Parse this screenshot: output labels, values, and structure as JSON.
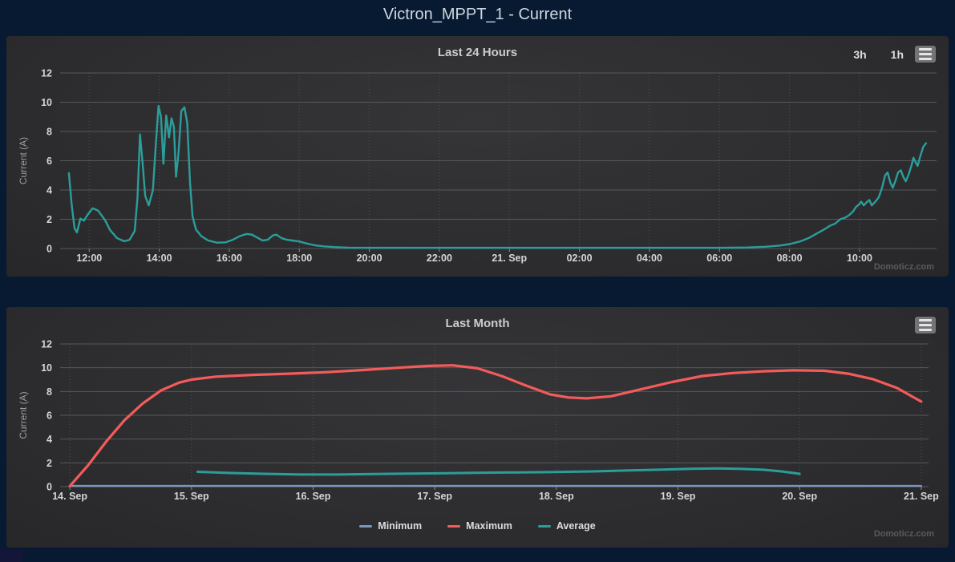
{
  "page": {
    "title": "Victron_MPPT_1 - Current",
    "watermark": "Domoticz.com"
  },
  "colors": {
    "background": "#081a31",
    "panel": "#2b2b2d",
    "grid_line": "#56585a",
    "grid_dotted": "#505153",
    "tick_mark": "#8a8a8a",
    "teal": "#2b9e9a",
    "red": "#f45b5b",
    "blue": "#7798bf",
    "text": "#d6d6d6"
  },
  "chart_data": [
    {
      "type": "line",
      "title": "Last 24 Hours",
      "range_buttons": [
        "3h",
        "1h"
      ],
      "ylabel": "Current (A)",
      "ylim": [
        0,
        12
      ],
      "yticks": [
        0,
        2,
        4,
        6,
        8,
        10,
        12
      ],
      "xlim": [
        11.17,
        36.2
      ],
      "xticks": [
        {
          "t": 12,
          "label": "12:00"
        },
        {
          "t": 14,
          "label": "14:00"
        },
        {
          "t": 16,
          "label": "16:00"
        },
        {
          "t": 18,
          "label": "18:00"
        },
        {
          "t": 20,
          "label": "20:00"
        },
        {
          "t": 22,
          "label": "22:00"
        },
        {
          "t": 24,
          "label": "21. Sep"
        },
        {
          "t": 26,
          "label": "02:00"
        },
        {
          "t": 28,
          "label": "04:00"
        },
        {
          "t": 30,
          "label": "06:00"
        },
        {
          "t": 32,
          "label": "08:00"
        },
        {
          "t": 34,
          "label": "10:00"
        }
      ],
      "grid": true,
      "legend": false,
      "series": [
        {
          "name": "Current",
          "color": "#2b9e9a",
          "width": 2.4,
          "points": [
            [
              11.42,
              5.15
            ],
            [
              11.5,
              3.0
            ],
            [
              11.58,
              1.4
            ],
            [
              11.65,
              1.1
            ],
            [
              11.75,
              2.05
            ],
            [
              11.85,
              1.9
            ],
            [
              11.95,
              2.3
            ],
            [
              12.1,
              2.75
            ],
            [
              12.25,
              2.6
            ],
            [
              12.45,
              1.95
            ],
            [
              12.6,
              1.25
            ],
            [
              12.8,
              0.7
            ],
            [
              13.0,
              0.5
            ],
            [
              13.15,
              0.6
            ],
            [
              13.3,
              1.2
            ],
            [
              13.38,
              3.5
            ],
            [
              13.45,
              7.8
            ],
            [
              13.52,
              6.0
            ],
            [
              13.6,
              3.6
            ],
            [
              13.7,
              2.95
            ],
            [
              13.82,
              4.0
            ],
            [
              13.9,
              7.0
            ],
            [
              13.98,
              9.75
            ],
            [
              14.05,
              9.0
            ],
            [
              14.12,
              5.8
            ],
            [
              14.2,
              9.1
            ],
            [
              14.28,
              7.6
            ],
            [
              14.35,
              8.9
            ],
            [
              14.42,
              8.3
            ],
            [
              14.48,
              4.9
            ],
            [
              14.55,
              6.5
            ],
            [
              14.63,
              9.4
            ],
            [
              14.72,
              9.65
            ],
            [
              14.8,
              8.6
            ],
            [
              14.88,
              4.5
            ],
            [
              14.95,
              2.2
            ],
            [
              15.05,
              1.3
            ],
            [
              15.2,
              0.85
            ],
            [
              15.4,
              0.55
            ],
            [
              15.65,
              0.4
            ],
            [
              15.9,
              0.42
            ],
            [
              16.1,
              0.6
            ],
            [
              16.3,
              0.85
            ],
            [
              16.5,
              1.0
            ],
            [
              16.65,
              0.95
            ],
            [
              16.8,
              0.75
            ],
            [
              16.95,
              0.55
            ],
            [
              17.1,
              0.6
            ],
            [
              17.25,
              0.9
            ],
            [
              17.35,
              0.95
            ],
            [
              17.5,
              0.7
            ],
            [
              17.65,
              0.6
            ],
            [
              17.8,
              0.55
            ],
            [
              18.0,
              0.48
            ],
            [
              18.2,
              0.35
            ],
            [
              18.45,
              0.22
            ],
            [
              18.7,
              0.15
            ],
            [
              19.0,
              0.1
            ],
            [
              19.4,
              0.06
            ],
            [
              20.0,
              0.05
            ],
            [
              21.0,
              0.05
            ],
            [
              22.0,
              0.05
            ],
            [
              23.0,
              0.05
            ],
            [
              24.0,
              0.05
            ],
            [
              25.0,
              0.05
            ],
            [
              26.0,
              0.05
            ],
            [
              27.0,
              0.05
            ],
            [
              28.0,
              0.05
            ],
            [
              29.0,
              0.05
            ],
            [
              30.0,
              0.05
            ],
            [
              30.8,
              0.07
            ],
            [
              31.3,
              0.12
            ],
            [
              31.7,
              0.2
            ],
            [
              32.0,
              0.3
            ],
            [
              32.3,
              0.48
            ],
            [
              32.55,
              0.72
            ],
            [
              32.8,
              1.05
            ],
            [
              33.0,
              1.32
            ],
            [
              33.15,
              1.55
            ],
            [
              33.3,
              1.7
            ],
            [
              33.45,
              2.0
            ],
            [
              33.6,
              2.12
            ],
            [
              33.72,
              2.32
            ],
            [
              33.82,
              2.55
            ],
            [
              33.9,
              2.85
            ],
            [
              33.98,
              3.0
            ],
            [
              34.05,
              3.2
            ],
            [
              34.12,
              2.95
            ],
            [
              34.2,
              3.15
            ],
            [
              34.28,
              3.32
            ],
            [
              34.35,
              2.95
            ],
            [
              34.45,
              3.2
            ],
            [
              34.55,
              3.5
            ],
            [
              34.65,
              4.2
            ],
            [
              34.73,
              5.0
            ],
            [
              34.8,
              5.2
            ],
            [
              34.88,
              4.5
            ],
            [
              34.95,
              4.15
            ],
            [
              35.02,
              4.6
            ],
            [
              35.1,
              5.2
            ],
            [
              35.18,
              5.35
            ],
            [
              35.25,
              4.9
            ],
            [
              35.32,
              4.6
            ],
            [
              35.4,
              5.05
            ],
            [
              35.48,
              5.65
            ],
            [
              35.54,
              6.2
            ],
            [
              35.6,
              5.9
            ],
            [
              35.66,
              5.65
            ],
            [
              35.74,
              6.35
            ],
            [
              35.82,
              6.95
            ],
            [
              35.9,
              7.2
            ]
          ]
        }
      ]
    },
    {
      "type": "line",
      "title": "Last Month",
      "ylabel": "Current (A)",
      "ylim": [
        0,
        12
      ],
      "yticks": [
        0,
        2,
        4,
        6,
        8,
        10,
        12
      ],
      "xlim": [
        13.92,
        21.06
      ],
      "xticks": [
        {
          "t": 14,
          "label": "14. Sep"
        },
        {
          "t": 15,
          "label": "15. Sep"
        },
        {
          "t": 16,
          "label": "16. Sep"
        },
        {
          "t": 17,
          "label": "17. Sep"
        },
        {
          "t": 18,
          "label": "18. Sep"
        },
        {
          "t": 19,
          "label": "19. Sep"
        },
        {
          "t": 20,
          "label": "20. Sep"
        },
        {
          "t": 21,
          "label": "21. Sep"
        }
      ],
      "grid": true,
      "legend": true,
      "series": [
        {
          "name": "Minimum",
          "color": "#7798bf",
          "width": 2.5,
          "points": [
            [
              14.0,
              0.06
            ],
            [
              21.0,
              0.06
            ]
          ]
        },
        {
          "name": "Maximum",
          "color": "#f45b5b",
          "width": 3.2,
          "points": [
            [
              14.0,
              0.05
            ],
            [
              14.15,
              1.8
            ],
            [
              14.3,
              3.8
            ],
            [
              14.45,
              5.6
            ],
            [
              14.6,
              7.0
            ],
            [
              14.75,
              8.1
            ],
            [
              14.9,
              8.75
            ],
            [
              15.0,
              9.0
            ],
            [
              15.2,
              9.25
            ],
            [
              15.5,
              9.4
            ],
            [
              15.8,
              9.5
            ],
            [
              16.1,
              9.62
            ],
            [
              16.4,
              9.8
            ],
            [
              16.7,
              10.0
            ],
            [
              16.95,
              10.15
            ],
            [
              17.15,
              10.2
            ],
            [
              17.35,
              9.95
            ],
            [
              17.55,
              9.3
            ],
            [
              17.75,
              8.5
            ],
            [
              17.95,
              7.75
            ],
            [
              18.1,
              7.5
            ],
            [
              18.25,
              7.42
            ],
            [
              18.45,
              7.6
            ],
            [
              18.7,
              8.2
            ],
            [
              18.95,
              8.8
            ],
            [
              19.2,
              9.3
            ],
            [
              19.45,
              9.55
            ],
            [
              19.7,
              9.7
            ],
            [
              19.95,
              9.78
            ],
            [
              20.2,
              9.75
            ],
            [
              20.4,
              9.5
            ],
            [
              20.6,
              9.05
            ],
            [
              20.8,
              8.3
            ],
            [
              21.0,
              7.15
            ]
          ]
        },
        {
          "name": "Average",
          "color": "#2b9e9a",
          "width": 3,
          "points": [
            [
              15.05,
              1.25
            ],
            [
              15.3,
              1.15
            ],
            [
              15.6,
              1.08
            ],
            [
              15.9,
              1.02
            ],
            [
              16.2,
              1.02
            ],
            [
              16.5,
              1.06
            ],
            [
              16.8,
              1.1
            ],
            [
              17.1,
              1.13
            ],
            [
              17.4,
              1.17
            ],
            [
              17.7,
              1.2
            ],
            [
              18.0,
              1.23
            ],
            [
              18.3,
              1.28
            ],
            [
              18.6,
              1.36
            ],
            [
              18.9,
              1.44
            ],
            [
              19.1,
              1.5
            ],
            [
              19.3,
              1.53
            ],
            [
              19.5,
              1.5
            ],
            [
              19.7,
              1.42
            ],
            [
              19.85,
              1.28
            ],
            [
              20.0,
              1.08
            ]
          ]
        }
      ]
    }
  ]
}
